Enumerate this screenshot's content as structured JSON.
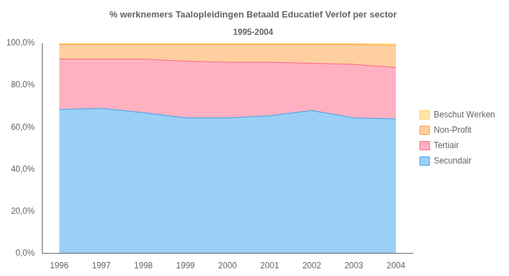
{
  "chart_data": {
    "type": "area",
    "stacked": true,
    "title": "% werknemers Taalopleidingen Betaald Educatief Verlof per sector",
    "subtitle": "1995-2004",
    "x": [
      1996,
      1997,
      1998,
      1999,
      2000,
      2001,
      2002,
      2003,
      2004
    ],
    "series": [
      {
        "name": "Secundair",
        "values": [
          68.5,
          69.0,
          67.0,
          64.5,
          64.5,
          65.5,
          68.0,
          64.5,
          64.0
        ]
      },
      {
        "name": "Tertiair",
        "values": [
          24.0,
          23.5,
          25.5,
          27.0,
          26.5,
          25.5,
          22.5,
          25.5,
          24.5
        ]
      },
      {
        "name": "Non-Profit",
        "values": [
          7.0,
          7.0,
          7.0,
          8.0,
          8.5,
          8.5,
          9.0,
          9.5,
          10.5
        ]
      },
      {
        "name": "Beschut Werken",
        "values": [
          0.5,
          0.5,
          0.5,
          0.5,
          0.5,
          0.5,
          0.5,
          0.5,
          1.0
        ]
      }
    ],
    "xlim": [
      1995.6,
      2004.4
    ],
    "xticks": [
      1996,
      1997,
      1998,
      1999,
      2000,
      2001,
      2002,
      2003,
      2004
    ],
    "ylim": [
      0,
      100
    ],
    "yticks": [
      {
        "value": 0,
        "label": "0,0%"
      },
      {
        "value": 20,
        "label": "20,0%"
      },
      {
        "value": 40,
        "label": "40,0%"
      },
      {
        "value": 60,
        "label": "60,0%"
      },
      {
        "value": 80,
        "label": "80,0%"
      },
      {
        "value": 100,
        "label": "100,0%"
      }
    ],
    "grid": false,
    "legend": "right"
  }
}
